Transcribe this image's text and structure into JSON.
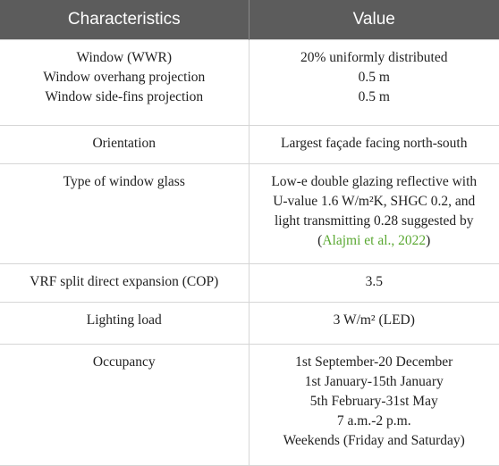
{
  "table": {
    "header": [
      "Characteristics",
      "Value"
    ],
    "rows": [
      [
        [
          "Window (WWR)",
          "Window overhang projection",
          "Window side-fins projection"
        ],
        [
          "20% uniformly distributed",
          "0.5 m",
          "0.5 m"
        ]
      ],
      [
        [
          "Orientation"
        ],
        [
          "Largest façade facing north-south"
        ]
      ],
      [
        [
          "Type of window glass"
        ],
        [
          "Low-e double glazing reflective with",
          "U-value 1.6 W/m²K, SHGC 0.2, and",
          "light transmitting 0.28 suggested by",
          {
            "open": "(",
            "citation": "Alajmi et al., 2022",
            "close": ")"
          }
        ]
      ],
      [
        [
          "VRF split direct expansion (COP)"
        ],
        [
          "3.5"
        ]
      ],
      [
        [
          "Lighting load"
        ],
        [
          "3 W/m² (LED)"
        ]
      ],
      [
        [
          "Occupancy"
        ],
        [
          "1st September-20 December",
          "1st January-15th January",
          "5th February-31st May",
          "7 a.m.-2 p.m.",
          "Weekends (Friday and Saturday)"
        ]
      ]
    ]
  }
}
